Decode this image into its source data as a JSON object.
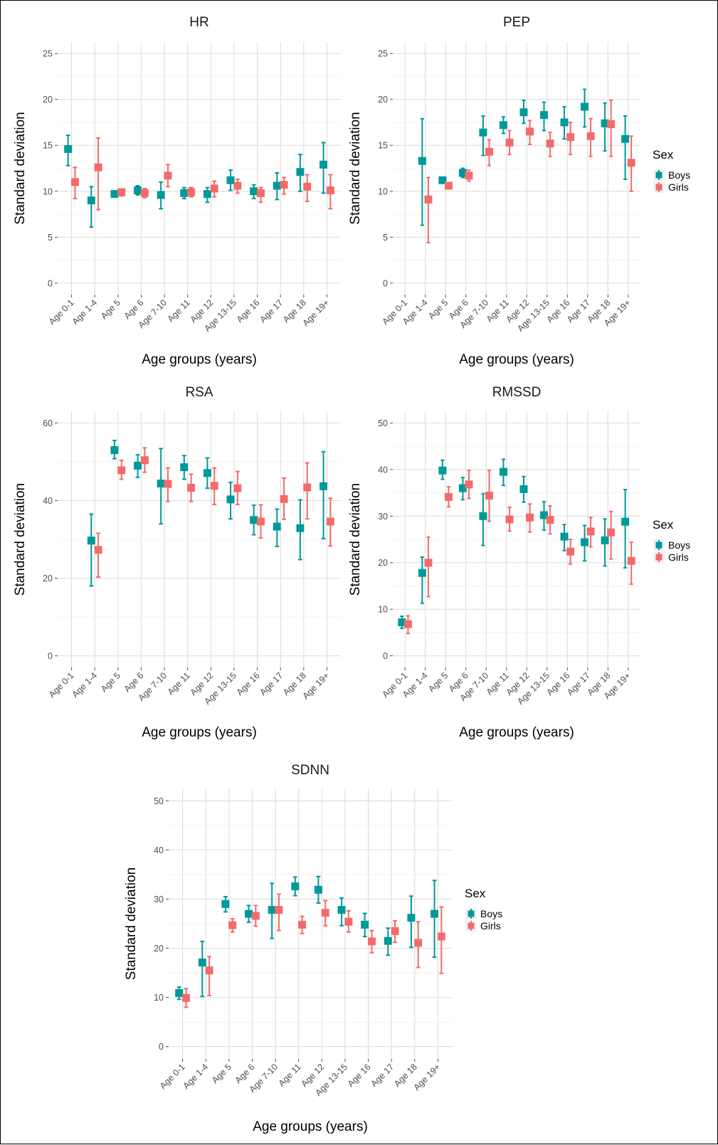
{
  "colors": {
    "Boys": "#00999a",
    "Girls": "#f26b6b"
  },
  "chart_data": [
    {
      "type": "errorbar",
      "title": "HR",
      "xlabel": "Age groups (years)",
      "ylabel": "Standard deviation",
      "categories": [
        "Age 0-1",
        "Age 1-4",
        "Age 5",
        "Age 6",
        "Age 7-10",
        "Age 11",
        "Age 12",
        "Age 13-15",
        "Age 16",
        "Age 17",
        "Age 18",
        "Age 19+"
      ],
      "ylim": [
        0,
        25
      ],
      "yticks": [
        0,
        5,
        10,
        15,
        20,
        25
      ],
      "grid": true,
      "legend": {
        "title": "",
        "position": "none"
      },
      "series": [
        {
          "name": "Boys",
          "values": [
            14.6,
            9.0,
            9.7,
            10.1,
            9.6,
            9.8,
            9.7,
            11.2,
            10.0,
            10.6,
            12.1,
            12.9
          ],
          "lower": [
            12.8,
            6.1,
            9.4,
            9.6,
            8.1,
            9.2,
            8.8,
            10.1,
            9.2,
            9.1,
            10.0,
            9.8
          ],
          "upper": [
            16.1,
            10.5,
            10.0,
            10.6,
            11.0,
            10.4,
            10.4,
            12.3,
            10.7,
            12.0,
            14.0,
            15.3
          ]
        },
        {
          "name": "Girls",
          "values": [
            11.0,
            12.6,
            9.9,
            9.8,
            11.7,
            9.9,
            10.3,
            10.6,
            9.8,
            10.7,
            10.5,
            10.1
          ],
          "lower": [
            9.2,
            8.0,
            9.5,
            9.3,
            10.5,
            9.4,
            9.4,
            9.8,
            8.8,
            9.7,
            8.9,
            8.1
          ],
          "upper": [
            12.6,
            15.8,
            10.2,
            10.3,
            12.9,
            10.4,
            11.1,
            11.3,
            10.4,
            11.5,
            11.8,
            11.8
          ]
        }
      ]
    },
    {
      "type": "errorbar",
      "title": "PEP",
      "xlabel": "Age groups (years)",
      "ylabel": "Standard deviation",
      "categories": [
        "Age 0-1",
        "Age 1-4",
        "Age 5",
        "Age 6",
        "Age 7-10",
        "Age 11",
        "Age 12",
        "Age 13-15",
        "Age 16",
        "Age 17",
        "Age 18",
        "Age 19+"
      ],
      "ylim": [
        0,
        25
      ],
      "yticks": [
        0,
        5,
        10,
        15,
        20,
        25
      ],
      "grid": true,
      "legend": {
        "title": "Sex",
        "position": "right"
      },
      "series": [
        {
          "name": "Boys",
          "values": [
            null,
            13.3,
            11.2,
            12.0,
            16.4,
            17.2,
            18.6,
            18.3,
            17.5,
            19.2,
            17.4,
            15.7
          ],
          "lower": [
            null,
            6.3,
            10.9,
            11.5,
            13.9,
            16.3,
            17.4,
            16.6,
            15.7,
            17.0,
            14.4,
            11.3
          ],
          "upper": [
            null,
            17.9,
            11.5,
            12.5,
            18.2,
            18.1,
            19.9,
            19.7,
            19.2,
            21.1,
            19.6,
            18.2
          ]
        },
        {
          "name": "Girls",
          "values": [
            null,
            9.1,
            10.6,
            11.7,
            14.3,
            15.3,
            16.5,
            15.2,
            15.9,
            16.0,
            17.3,
            13.1
          ],
          "lower": [
            null,
            4.4,
            10.3,
            11.1,
            12.8,
            14.0,
            15.1,
            13.8,
            14.0,
            13.8,
            13.8,
            10.0
          ],
          "upper": [
            null,
            11.5,
            10.9,
            12.3,
            15.6,
            16.6,
            17.7,
            16.4,
            17.5,
            17.9,
            19.9,
            16.0
          ]
        }
      ]
    },
    {
      "type": "errorbar",
      "title": "RSA",
      "xlabel": "Age groups (years)",
      "ylabel": "Standard deviation",
      "categories": [
        "Age 0-1",
        "Age 1-4",
        "Age 5",
        "Age 6",
        "Age 7-10",
        "Age 11",
        "Age 12",
        "Age 13-15",
        "Age 16",
        "Age 17",
        "Age 18",
        "Age 19+"
      ],
      "ylim": [
        0,
        60
      ],
      "yticks": [
        0,
        20,
        40,
        60
      ],
      "grid": true,
      "legend": {
        "title": "",
        "position": "none"
      },
      "series": [
        {
          "name": "Boys",
          "values": [
            null,
            29.7,
            53.0,
            49.0,
            44.4,
            48.6,
            47.1,
            40.3,
            35.0,
            33.3,
            32.9,
            43.7
          ],
          "lower": [
            null,
            18.0,
            50.8,
            46.0,
            34.0,
            45.5,
            43.2,
            35.3,
            31.2,
            28.2,
            24.8,
            30.2
          ],
          "upper": [
            null,
            36.5,
            55.5,
            51.8,
            53.4,
            51.6,
            51.0,
            44.7,
            38.8,
            37.8,
            40.2,
            52.6
          ]
        },
        {
          "name": "Girls",
          "values": [
            null,
            27.3,
            47.8,
            50.4,
            44.3,
            43.3,
            43.8,
            43.2,
            34.6,
            40.4,
            43.4,
            34.6
          ],
          "lower": [
            null,
            20.3,
            45.5,
            47.3,
            39.8,
            39.8,
            39.0,
            39.0,
            30.4,
            35.2,
            35.3,
            28.3
          ],
          "upper": [
            null,
            31.6,
            50.4,
            53.6,
            48.4,
            46.8,
            48.4,
            47.5,
            38.9,
            45.8,
            49.7,
            40.6
          ]
        }
      ]
    },
    {
      "type": "errorbar",
      "title": "RMSSD",
      "xlabel": "Age groups (years)",
      "ylabel": "Standard deviation",
      "categories": [
        "Age 0-1",
        "Age 1-4",
        "Age 5",
        "Age 6",
        "Age 7-10",
        "Age 11",
        "Age 12",
        "Age 13-15",
        "Age 16",
        "Age 17",
        "Age 18",
        "Age 19+"
      ],
      "ylim": [
        0,
        50
      ],
      "yticks": [
        0,
        10,
        20,
        30,
        40,
        50
      ],
      "grid": true,
      "legend": {
        "title": "Sex",
        "position": "right"
      },
      "series": [
        {
          "name": "Boys",
          "values": [
            7.2,
            17.8,
            39.8,
            36.0,
            30.0,
            39.5,
            35.8,
            30.2,
            25.6,
            24.4,
            24.8,
            28.8
          ],
          "lower": [
            5.9,
            11.3,
            37.9,
            33.5,
            23.7,
            36.6,
            33.0,
            27.0,
            22.6,
            20.4,
            19.3,
            18.9
          ],
          "upper": [
            8.5,
            21.2,
            42.0,
            38.3,
            34.8,
            42.2,
            38.5,
            33.1,
            28.2,
            28.0,
            29.4,
            35.7
          ]
        },
        {
          "name": "Girls",
          "values": [
            6.8,
            20.0,
            34.1,
            36.8,
            34.4,
            29.3,
            29.7,
            29.2,
            22.4,
            26.7,
            26.5,
            20.4
          ],
          "lower": [
            4.8,
            12.7,
            32.0,
            33.8,
            28.9,
            26.8,
            26.6,
            26.2,
            19.7,
            23.4,
            20.8,
            15.4
          ],
          "upper": [
            8.6,
            25.5,
            36.3,
            39.8,
            39.8,
            31.9,
            32.6,
            32.2,
            25.0,
            29.7,
            31.0,
            24.4
          ]
        }
      ]
    },
    {
      "type": "errorbar",
      "title": "SDNN",
      "xlabel": "Age groups (years)",
      "ylabel": "Standard deviation",
      "categories": [
        "Age 0-1",
        "Age 1-4",
        "Age 5",
        "Age 6",
        "Age 7-10",
        "Age 11",
        "Age 12",
        "Age 13-15",
        "Age 16",
        "Age 17",
        "Age 18",
        "Age 19+"
      ],
      "ylim": [
        0,
        50
      ],
      "yticks": [
        0,
        10,
        20,
        30,
        40,
        50
      ],
      "grid": true,
      "legend": {
        "title": "Sex",
        "position": "right"
      },
      "series": [
        {
          "name": "Boys",
          "values": [
            10.9,
            17.1,
            29.0,
            27.0,
            27.8,
            32.6,
            31.9,
            27.8,
            24.8,
            21.5,
            26.2,
            27.0
          ],
          "lower": [
            9.6,
            10.2,
            27.4,
            25.3,
            22.0,
            30.7,
            29.2,
            24.6,
            22.4,
            18.6,
            20.2,
            18.2
          ],
          "upper": [
            12.1,
            21.4,
            30.5,
            28.7,
            33.2,
            34.5,
            34.6,
            30.2,
            27.1,
            24.1,
            30.6,
            33.8
          ]
        },
        {
          "name": "Girls",
          "values": [
            9.9,
            15.5,
            24.7,
            26.6,
            27.8,
            24.8,
            27.2,
            25.4,
            21.4,
            23.5,
            21.1,
            22.4
          ],
          "lower": [
            8.0,
            10.4,
            23.3,
            24.5,
            23.6,
            23.0,
            24.6,
            23.3,
            19.1,
            21.2,
            16.1,
            14.9
          ],
          "upper": [
            11.8,
            18.3,
            26.0,
            28.7,
            31.0,
            26.5,
            29.7,
            27.6,
            23.6,
            25.6,
            25.4,
            28.4
          ]
        }
      ]
    }
  ]
}
